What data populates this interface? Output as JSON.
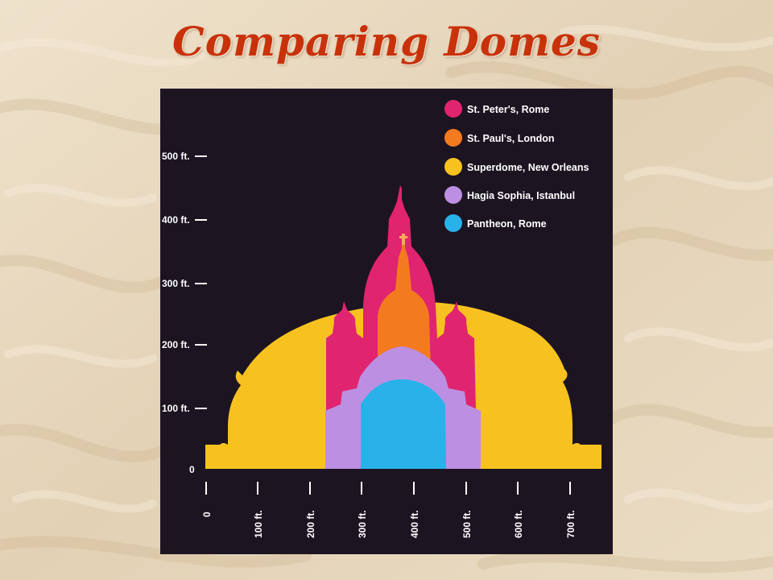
{
  "slide": {
    "title": "Comparing Domes"
  },
  "diagram": {
    "legend": [
      {
        "label": "St. Peter's, Rome",
        "color": "#e0246f"
      },
      {
        "label": "St. Paul's, London",
        "color": "#f47a20"
      },
      {
        "label": "Superdome, New Orleans",
        "color": "#f7c21f"
      },
      {
        "label": "Hagia Sophia, Istanbul",
        "color": "#bc8fe2"
      },
      {
        "label": "Pantheon, Rome",
        "color": "#29b2ea"
      }
    ],
    "height_ticks": [
      "500 ft.",
      "400 ft.",
      "300 ft.",
      "200 ft.",
      "100 ft.",
      "0"
    ],
    "width_ticks": [
      "0",
      "100 ft.",
      "200 ft.",
      "300 ft.",
      "400 ft.",
      "500 ft.",
      "600 ft.",
      "700 ft."
    ],
    "colors": {
      "background": "#1d1422",
      "slide_background": "#e6d6bd",
      "title": "#c8320a"
    }
  }
}
